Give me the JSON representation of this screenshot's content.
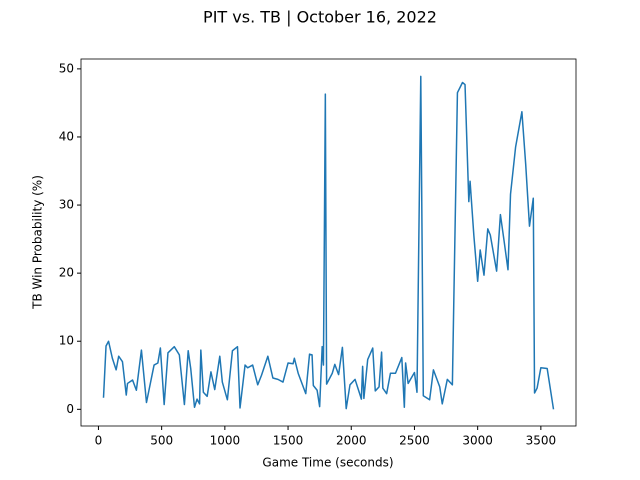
{
  "chart_data": {
    "type": "line",
    "title": "PIT vs. TB | October 16, 2022",
    "x_label": "Game Time (seconds)",
    "y_label": "TB Win Probability (%)",
    "x": [
      40,
      60,
      80,
      110,
      140,
      160,
      190,
      220,
      230,
      270,
      300,
      340,
      380,
      440,
      470,
      490,
      520,
      550,
      600,
      640,
      680,
      710,
      730,
      760,
      780,
      800,
      810,
      830,
      860,
      890,
      920,
      960,
      980,
      1020,
      1060,
      1100,
      1120,
      1160,
      1180,
      1220,
      1260,
      1290,
      1340,
      1380,
      1420,
      1460,
      1500,
      1540,
      1550,
      1580,
      1640,
      1670,
      1690,
      1700,
      1730,
      1750,
      1770,
      1780,
      1795,
      1805,
      1850,
      1870,
      1900,
      1930,
      1960,
      1990,
      2030,
      2070,
      2080,
      2090,
      2100,
      2130,
      2170,
      2190,
      2220,
      2240,
      2250,
      2280,
      2310,
      2350,
      2400,
      2420,
      2430,
      2450,
      2500,
      2520,
      2550,
      2570,
      2620,
      2650,
      2700,
      2720,
      2760,
      2800,
      2810,
      2840,
      2880,
      2900,
      2930,
      2940,
      2970,
      3000,
      3020,
      3050,
      3080,
      3100,
      3150,
      3180,
      3210,
      3240,
      3260,
      3300,
      3350,
      3380,
      3410,
      3440,
      3450,
      3470,
      3500,
      3550,
      3600
    ],
    "series": [
      {
        "name": "TB",
        "color": "#1f77b4",
        "values": [
          1.7,
          9.3,
          10,
          7.5,
          5.8,
          7.8,
          7,
          2.1,
          3.8,
          4.3,
          2.8,
          8.7,
          1,
          6.5,
          6.8,
          9,
          0.7,
          8.3,
          9.2,
          8,
          0.7,
          8.6,
          6,
          0.3,
          1.5,
          0.8,
          8.7,
          2.5,
          1.9,
          5.5,
          2.9,
          7.8,
          4,
          1.4,
          8.6,
          9.2,
          0.2,
          6.5,
          6.1,
          6.5,
          3.6,
          5,
          7.8,
          4.6,
          4.4,
          4,
          6.8,
          6.7,
          7.5,
          5.3,
          2.3,
          8.1,
          8,
          3.5,
          2.8,
          0.4,
          9.2,
          6.5,
          46.3,
          3.7,
          5.3,
          6.6,
          5.1,
          9.1,
          0.1,
          3.6,
          4.4,
          2.1,
          1.5,
          6.3,
          1.6,
          7.3,
          9,
          2.7,
          3.3,
          8.4,
          3.1,
          2.3,
          5.3,
          5.3,
          7.6,
          0.3,
          6.8,
          3.8,
          5.4,
          2.5,
          48.9,
          2,
          1.4,
          5.8,
          3.3,
          0.8,
          4.4,
          3.6,
          14.5,
          46.5,
          48,
          47.7,
          30.5,
          33.5,
          25.5,
          18.8,
          23.4,
          19.7,
          26.5,
          25.6,
          20.3,
          28.6,
          24.6,
          20.5,
          31.6,
          38.5,
          43.7,
          36,
          26.9,
          31,
          2.4,
          3.1,
          6.1,
          6,
          0
        ]
      }
    ],
    "xlim": [
      -138,
      3778
    ],
    "ylim": [
      -2.45,
      51.45
    ],
    "xticks": [
      0,
      500,
      1000,
      1500,
      2000,
      2500,
      3000,
      3500
    ],
    "yticks": [
      0,
      10,
      20,
      30,
      40,
      50
    ],
    "grid": false
  }
}
